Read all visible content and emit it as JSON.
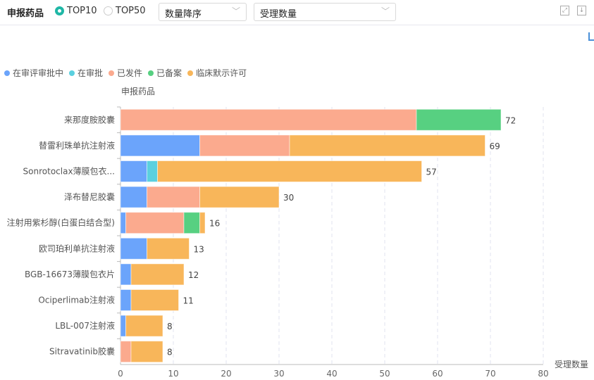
{
  "toolbar": {
    "title": "申报药品",
    "radio_options": [
      {
        "label": "TOP10",
        "selected": true
      },
      {
        "label": "TOP50",
        "selected": false
      }
    ],
    "sort_select": "数量降序",
    "metric_select": "受理数量"
  },
  "chart_data": {
    "type": "bar",
    "orientation": "horizontal",
    "stacked": true,
    "ylabel": "申报药品",
    "xlabel": "受理数量",
    "xlim": [
      0,
      80
    ],
    "xticks": [
      0,
      10,
      20,
      30,
      40,
      50,
      60,
      70,
      80
    ],
    "grid": true,
    "legend_position": "top-left",
    "categories": [
      "来那度胺胶囊",
      "替雷利珠单抗注射液",
      "Sonrotoclax薄膜包衣...",
      "泽布替尼胶囊",
      "注射用紫杉醇(白蛋白结合型)",
      "欧司珀利单抗注射液",
      "BGB-16673薄膜包衣片",
      "Ociperlimab注射液",
      "LBL-007注射液",
      "Sitravatinib胶囊"
    ],
    "totals": [
      72,
      69,
      57,
      30,
      16,
      13,
      12,
      11,
      8,
      8
    ],
    "series": [
      {
        "name": "在审评审批中",
        "color": "#6ba4fb",
        "values": [
          0,
          15,
          5,
          5,
          1,
          5,
          2,
          2,
          1,
          0
        ]
      },
      {
        "name": "在审批",
        "color": "#5bd0df",
        "values": [
          0,
          0,
          2,
          0,
          0,
          0,
          0,
          0,
          0,
          0
        ]
      },
      {
        "name": "已发件",
        "color": "#fbaa8e",
        "values": [
          56,
          17,
          0,
          10,
          11,
          0,
          0,
          0,
          0,
          2
        ]
      },
      {
        "name": "已备案",
        "color": "#57d081",
        "values": [
          16,
          0,
          0,
          0,
          3,
          0,
          0,
          0,
          0,
          0
        ]
      },
      {
        "name": "临床默示许可",
        "color": "#f8b65a",
        "values": [
          0,
          37,
          50,
          15,
          1,
          8,
          10,
          9,
          7,
          6
        ]
      }
    ]
  }
}
